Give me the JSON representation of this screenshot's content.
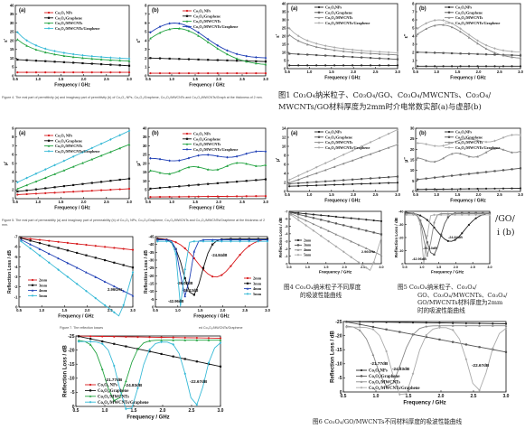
{
  "colors": {
    "red": "#d7191c",
    "black": "#111111",
    "green": "#22a340",
    "blue": "#1f3fb5",
    "cyan": "#36b9d6",
    "gray": "#666666"
  },
  "left_series": [
    "Co₃O₄ NPs",
    "Co₃O₄/Graphene",
    "Co₃O₄/MWCNTs",
    "Co₃O₄/MWCNTs/Graphene"
  ],
  "right_series": [
    "Co₃O₄NPs",
    "Co₃O₄/Graphene",
    "Co₃O₄/MWCNTs",
    "Co₃O₄/MWCNTs/Graphene"
  ],
  "zh_series_fig6": [
    "Co₃O₄NPs",
    "Co₃O₄/Graphene",
    "Co₃O₄/MWCNTs",
    "Co₃O₄/MWCNTs/Graphene"
  ],
  "captions": {
    "fig4_en": "Figure 4. The real part of permittivity (a) and imaginary part of permittivity (b) of Co₃O₄ NPs, Co₃O₄/Graphene, Co₃O₄/MWCNTs and Co₃O₄/MWCNTs/Graph at the thickness of 2 mm.",
    "fig5_en": "Figure 5. The real part of permeability (a) and imaginary part of permeability (b) of Co₃O₄ NPs, Co₃O₄/Graphene, Co₃O₄/MWCNTs and Co₃O₄/MWCNTs/Graphene at the thickness of 2 mm.",
    "fig7_en": "Figure 7. The reflection losses",
    "fig7_en_tail": "ed Co₃O₄/MWCNTs/Graphene",
    "zh1_line1": "图1 Co₃O₄纳米粒子、Co₃O₄/GO、Co₃O₄/MWCNTs、Co₃O₄/",
    "zh1_line2": "MWCNTs/GO材料厚度为2mm时介电常数实部(a)与虚部(b)",
    "zh4_line1": "图4 Co₃O₄纳米粒子不同厚度",
    "zh4_line2": "的吸波性能曲线",
    "zh5_line1": "图5 Co₃O₄纳米粒子、Co₃O₄/",
    "zh5_line2": "GO、Co₃O₄/MWCNTs、Co₃O₄/",
    "zh5_line3": "GO/MWCNTs材料厚度为2mm",
    "zh5_line4": "时的吸波性能曲线",
    "zh6": "图6 Co₃O₄/GO/MWCNTs不同材料厚度的吸波性能曲线",
    "frag1": "/GO/",
    "frag2": "i (b)"
  },
  "charts": {
    "en_eps_a": {
      "label": "(a)",
      "ylabel": "ε′",
      "xlabel": "Frequency / GHz",
      "xticks": [
        "0.5",
        "1.0",
        "1.5",
        "2.0",
        "2.5",
        "3.0"
      ],
      "yticks": [
        "0",
        "5",
        "10",
        "15",
        "20",
        "25",
        "30",
        "35",
        "40"
      ]
    },
    "en_eps_b": {
      "label": "(b)",
      "ylabel": "ε″",
      "xlabel": "Frequency / GHz",
      "xticks": [
        "0.5",
        "1.0",
        "1.5",
        "2.0",
        "2.5",
        "3.0"
      ],
      "yticks": [
        "0",
        "1",
        "2",
        "3",
        "4",
        "5",
        "6",
        "7",
        "8"
      ]
    },
    "en_mu_a": {
      "label": "(a)",
      "ylabel": "μ′",
      "xlabel": "Frequency / GHz",
      "xticks": [
        "0.5",
        "1.0",
        "1.5",
        "2.0",
        "2.5",
        "3.0"
      ],
      "yticks": [
        "1",
        "2",
        "3",
        "4",
        "5",
        "6",
        "7",
        "8",
        "9"
      ]
    },
    "en_mu_b": {
      "label": "(b)",
      "ylabel": "μ″",
      "xlabel": "Frequency / GHz",
      "xticks": [
        "0.5",
        "1.0",
        "1.5",
        "2.0",
        "2.5",
        "3.0"
      ],
      "yticks": [
        "0",
        "5",
        "10",
        "15",
        "20",
        "25",
        "30",
        "35",
        "40"
      ]
    },
    "en_rl1": {
      "ylabel": "Reflection Loss / dB",
      "xlabel": "Frequency / GHz",
      "xticks": [
        "0.5",
        "1.0",
        "1.5",
        "2.0",
        "2.5",
        "3.0"
      ],
      "yticks": [
        "0",
        "-1",
        "-2",
        "-3",
        "-4",
        "-5",
        "-6",
        "-7"
      ],
      "legend": [
        "2mm",
        "3mm",
        "4mm",
        "5mm"
      ],
      "annotation": "2.96GHz"
    },
    "en_rl2": {
      "ylabel": "Reflection Loss / dB",
      "xlabel": "Frequency / GHz",
      "xticks": [
        "0.5",
        "1.0",
        "1.5",
        "2.0",
        "2.5",
        "3.0"
      ],
      "yticks": [
        "0",
        "-5",
        "-10",
        "-15",
        "-20",
        "-25",
        "-30",
        "-35",
        "-40",
        "-45"
      ],
      "legend": [
        "2mm",
        "3mm",
        "4mm",
        "5mm"
      ],
      "annotations": [
        "-24.84dB",
        "-36.08dB",
        "-36.13dB",
        "-42.96dB"
      ]
    },
    "en_rl3": {
      "ylabel": "Reflection Loss / dB",
      "xlabel": "Frequency / GHz",
      "xticks": [
        "0.5",
        "1.0",
        "1.5",
        "2.0",
        "2.5",
        "3.0"
      ],
      "yticks": [
        "0",
        "-5",
        "-10",
        "-15",
        "-20",
        "-25"
      ],
      "annotations": [
        "-21.77dB",
        "-24.83dB",
        "-22.67dB"
      ]
    },
    "zh_eps_a": {
      "label": "(a)",
      "ylabel": "ε′",
      "xlabel": "Frequency / GHz",
      "xticks": [
        "0.5",
        "1.0",
        "1.5",
        "2.0",
        "2.5",
        "3.0"
      ],
      "yticks": [
        "0",
        "5",
        "10",
        "15",
        "20",
        "25",
        "30",
        "35",
        "40"
      ]
    },
    "zh_eps_b": {
      "label": "(b)",
      "ylabel": "ε″",
      "xlabel": "Frequency / GHz",
      "xticks": [
        "0.5",
        "1.0",
        "1.5",
        "2.0",
        "2.5",
        "3.0"
      ],
      "yticks": [
        "0",
        "1",
        "2",
        "3",
        "4",
        "5",
        "6",
        "7",
        "8"
      ]
    },
    "zh_mu_a": {
      "label": "(a)",
      "ylabel": "μ′",
      "xlabel": "Frequency / GHz",
      "xticks": [
        "0.5",
        "1.0",
        "1.5",
        "2.0",
        "2.5",
        "3.0"
      ],
      "yticks": [
        "0",
        "2",
        "4",
        "6",
        "8",
        "10",
        "12",
        "14"
      ]
    },
    "zh_mu_b": {
      "label": "(b)",
      "ylabel": "μ″",
      "xlabel": "Frequency / GHz",
      "xticks": [
        "0.5",
        "1.0",
        "1.5",
        "2.0",
        "2.5",
        "3.0"
      ],
      "yticks": [
        "0",
        "5",
        "10",
        "15",
        "20",
        "25",
        "30"
      ]
    },
    "zh_rl1": {
      "ylabel": "Reflection Loss / dB",
      "xlabel": "Frequency / GHz",
      "xticks": [
        "0.5",
        "1.0",
        "1.5",
        "2.0",
        "2.5",
        "3.0"
      ],
      "yticks": [
        "0",
        "-1",
        "-2",
        "-3",
        "-4",
        "-5",
        "-6",
        "-7"
      ],
      "legend": [
        "2mm",
        "3mm",
        "4mm",
        "5mm"
      ],
      "annotation": "2.96GHz"
    },
    "zh_rl2": {
      "ylabel": "Reflection Loss / dB",
      "xlabel": "Frequency / GHz",
      "xticks": [
        "0.5",
        "1.0",
        "1.5",
        "2.0",
        "2.5",
        "3.0"
      ],
      "yticks": [
        "0",
        "-10",
        "-20",
        "-30",
        "-40"
      ],
      "annotations": [
        "-24.84dB",
        "-36.13dB",
        "-42.96dB"
      ]
    },
    "zh_rl3": {
      "ylabel": "Reflection Loss / dB",
      "xlabel": "Frequency / GHz",
      "xticks": [
        "0.5",
        "1.0",
        "1.5",
        "2.0",
        "2.5",
        "3.0"
      ],
      "yticks": [
        "0",
        "-5",
        "-10",
        "-15",
        "-20",
        "-25"
      ],
      "annotations": [
        "-21.77dB",
        "-24.83dB",
        "-22.67dB"
      ]
    }
  },
  "chart_data": [
    {
      "type": "line",
      "label": "(a)",
      "xlabel": "Frequency / GHz",
      "ylabel": "ε′",
      "xlim": [
        0.5,
        3.0
      ],
      "ylim": [
        0,
        40
      ],
      "x": [
        0.5,
        1.0,
        1.5,
        2.0,
        2.5,
        3.0
      ],
      "series": [
        {
          "name": "Co₃O₄ NPs",
          "values": [
            2,
            2,
            2,
            2,
            2,
            2
          ]
        },
        {
          "name": "Co₃O₄/Graphene",
          "values": [
            9,
            8,
            7,
            6.5,
            6,
            5.5
          ]
        },
        {
          "name": "Co₃O₄/MWCNTs",
          "values": [
            30,
            19,
            14,
            11,
            9.5,
            8.5
          ]
        },
        {
          "name": "Co₃O₄/MWCNTs/Graphene",
          "values": [
            36,
            22,
            16,
            12.5,
            10.5,
            9
          ]
        }
      ]
    },
    {
      "type": "line",
      "label": "(b)",
      "xlabel": "Frequency / GHz",
      "ylabel": "ε″",
      "xlim": [
        0.5,
        3.0
      ],
      "ylim": [
        0,
        8
      ],
      "x": [
        0.5,
        1.0,
        1.5,
        2.0,
        2.5,
        3.0
      ],
      "series": [
        {
          "name": "Co₃O₄ NPs",
          "values": [
            0.3,
            0.3,
            0.3,
            0.3,
            0.3,
            0.3
          ]
        },
        {
          "name": "Co₃O₄/Graphene",
          "values": [
            2,
            2,
            1.9,
            1.8,
            1.7,
            1.6
          ]
        },
        {
          "name": "Co₃O₄/MWCNTs",
          "values": [
            5.2,
            5.5,
            4.8,
            3.6,
            2.4,
            1.6
          ]
        },
        {
          "name": "Co₃O₄/MWCNTs/Graphene",
          "values": [
            5.6,
            6,
            5,
            3.8,
            3,
            2.4
          ]
        }
      ]
    },
    {
      "type": "line",
      "label": "(a)",
      "xlabel": "Frequency / GHz",
      "ylabel": "μ′",
      "xlim": [
        0.5,
        3.0
      ],
      "ylim": [
        1,
        9
      ],
      "x": [
        0.5,
        1.0,
        1.5,
        2.0,
        2.5,
        3.0
      ],
      "series": [
        {
          "name": "Co₃O₄ NPs",
          "values": [
            1.5,
            1.6,
            1.7,
            1.8,
            2.0,
            2.1
          ]
        },
        {
          "name": "Co₃O₄/Graphene",
          "values": [
            1.9,
            2.1,
            2.4,
            2.7,
            3.0,
            3.2
          ]
        },
        {
          "name": "Co₃O₄/MWCNTs",
          "values": [
            2.5,
            3.2,
            4.3,
            5.6,
            6.5,
            7.0
          ]
        },
        {
          "name": "Co₃O₄/MWCNTs/Graphene",
          "values": [
            3.5,
            4.5,
            5.8,
            7.2,
            8.0,
            8.5
          ]
        }
      ]
    },
    {
      "type": "line",
      "label": "(b)",
      "xlabel": "Frequency / GHz",
      "ylabel": "μ″",
      "xlim": [
        0.5,
        3.0
      ],
      "ylim": [
        0,
        40
      ],
      "x": [
        0.5,
        1.0,
        1.5,
        2.0,
        2.5,
        3.0
      ],
      "series": [
        {
          "name": "Co₃O₄ NPs",
          "values": [
            1,
            1,
            1.2,
            1.2,
            1.5,
            1.5
          ]
        },
        {
          "name": "Co₃O₄/Graphene",
          "values": [
            6,
            7,
            8,
            9,
            10,
            11
          ]
        },
        {
          "name": "Co₃O₄/MWCNTs",
          "values": [
            15,
            16,
            17,
            18,
            19,
            20
          ]
        },
        {
          "name": "Co₃O₄/MWCNTs/Graphene",
          "values": [
            22,
            23,
            24,
            24,
            25,
            26
          ]
        }
      ]
    },
    {
      "type": "line",
      "xlabel": "Frequency / GHz",
      "ylabel": "Reflection Loss / dB",
      "xlim": [
        0.5,
        3.0
      ],
      "ylim": [
        -7,
        0
      ],
      "x": [
        0.5,
        1.0,
        1.5,
        2.0,
        2.5,
        3.0
      ],
      "series": [
        {
          "name": "2mm",
          "values": [
            -0.1,
            -0.2,
            -0.4,
            -0.7,
            -1.0,
            -1.3
          ]
        },
        {
          "name": "3mm",
          "values": [
            -0.1,
            -0.4,
            -0.9,
            -1.5,
            -2.3,
            -3.0
          ]
        },
        {
          "name": "4mm",
          "values": [
            -0.2,
            -0.7,
            -1.6,
            -2.8,
            -4.5,
            -5.6
          ]
        },
        {
          "name": "5mm",
          "values": [
            -0.3,
            -1.1,
            -2.4,
            -4.2,
            -6.2,
            -3.0
          ]
        }
      ]
    },
    {
      "type": "line",
      "xlabel": "Frequency / GHz",
      "ylabel": "Reflection Loss / dB",
      "xlim": [
        0.5,
        3.0
      ],
      "ylim": [
        -45,
        0
      ],
      "x": [
        0.5,
        1.0,
        1.5,
        2.0,
        2.5,
        3.0
      ],
      "series": [
        {
          "name": "2mm",
          "values": [
            -2,
            -6,
            -12,
            -24.84,
            -14,
            -8
          ]
        },
        {
          "name": "3mm",
          "values": [
            -3,
            -14,
            -36.08,
            -16,
            -9,
            -6
          ]
        },
        {
          "name": "4mm",
          "values": [
            -5,
            -36.13,
            -14,
            -8,
            -5,
            -4
          ]
        },
        {
          "name": "5mm",
          "values": [
            -8,
            -42.96,
            -10,
            -6,
            -4,
            -3
          ]
        }
      ]
    },
    {
      "type": "line",
      "xlabel": "Frequency / GHz",
      "ylabel": "Reflection Loss / dB",
      "xlim": [
        0.5,
        3.0
      ],
      "ylim": [
        -25,
        0
      ],
      "x": [
        0.5,
        1.0,
        1.5,
        2.0,
        2.5,
        3.0
      ],
      "series": [
        {
          "name": "Co₃O₄ NPs",
          "values": [
            0,
            -0.2,
            -0.3,
            -0.5,
            -0.7,
            -0.9
          ]
        },
        {
          "name": "Co₃O₄/Graphene",
          "values": [
            -0.5,
            -1.5,
            -3,
            -5,
            -8,
            -10
          ]
        },
        {
          "name": "Co₃O₄/MWCNTs",
          "values": [
            -2,
            -21.77,
            -7,
            -4,
            -3,
            -2
          ]
        },
        {
          "name": "Co₃O₄/MWCNTs/Graphene",
          "values": [
            -3,
            -10,
            -24.83,
            -9,
            -22.67,
            -8
          ]
        }
      ]
    }
  ]
}
